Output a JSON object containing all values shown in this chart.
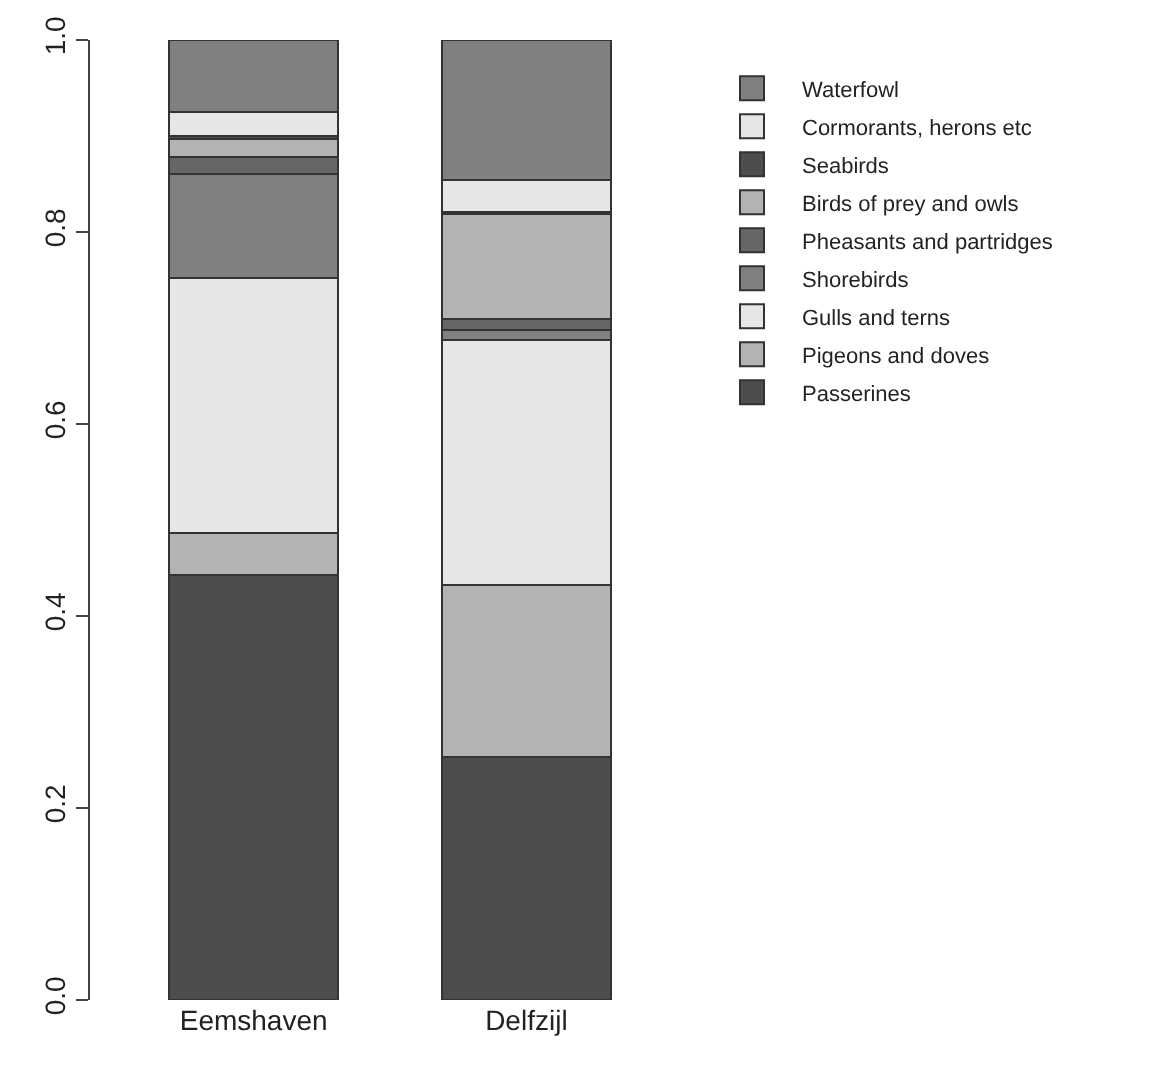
{
  "chart_data": {
    "type": "bar",
    "stacked": true,
    "categories": [
      "Eemshaven",
      "Delfzijl"
    ],
    "series": [
      {
        "name": "Passerines",
        "color": "#4d4d4d",
        "values": [
          0.443,
          0.253
        ]
      },
      {
        "name": "Pigeons and doves",
        "color": "#b3b3b3",
        "values": [
          0.043,
          0.179
        ]
      },
      {
        "name": "Gulls and terns",
        "color": "#e6e6e6",
        "values": [
          0.266,
          0.256
        ]
      },
      {
        "name": "Shorebirds",
        "color": "#808080",
        "values": [
          0.108,
          0.01
        ]
      },
      {
        "name": "Pheasants and partridges",
        "color": "#666666",
        "values": [
          0.018,
          0.011
        ]
      },
      {
        "name": "Birds of prey and owls",
        "color": "#b3b3b3",
        "values": [
          0.019,
          0.11
        ]
      },
      {
        "name": "Seabirds",
        "color": "#4d4d4d",
        "values": [
          0.003,
          0.002
        ]
      },
      {
        "name": "Cormorants, herons etc",
        "color": "#e6e6e6",
        "values": [
          0.025,
          0.033
        ]
      },
      {
        "name": "Waterfowl",
        "color": "#808080",
        "values": [
          0.075,
          0.146
        ]
      }
    ],
    "ylim": [
      0,
      1
    ],
    "yticks": [
      {
        "value": 0,
        "label": "0.0"
      },
      0.2,
      0.4,
      0.6,
      0.8,
      {
        "value": 1,
        "label": "1.0"
      }
    ],
    "grid": false,
    "legend": "right"
  }
}
